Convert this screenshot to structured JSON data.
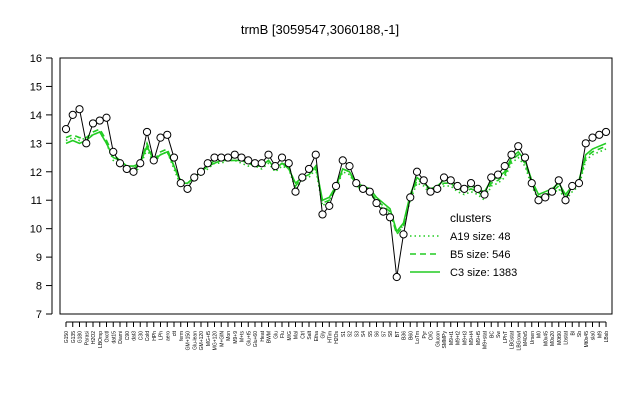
{
  "chart_data": {
    "type": "line",
    "title": "trmB [3059547,3060188,-1]",
    "xlabel": "",
    "ylabel": "",
    "ylim": [
      7,
      16
    ],
    "yticks": [
      7,
      8,
      9,
      10,
      11,
      12,
      13,
      14,
      15,
      16
    ],
    "grid": false,
    "legend_position": "right",
    "legend": {
      "title": "clusters",
      "entries": [
        {
          "label": "A19 size: 48",
          "color": "#22cc22",
          "style": "dotted"
        },
        {
          "label": "B5 size: 546",
          "color": "#22cc22",
          "style": "dashed"
        },
        {
          "label": "C3 size: 1383",
          "color": "#22cc22",
          "style": "solid"
        }
      ]
    },
    "x_labels": [
      "G150",
      "G135",
      "G180",
      "Parasi",
      "H2O2",
      "LBOmp",
      "Oxctl",
      "dat15",
      "Diami",
      "C90",
      "dat3",
      "C30",
      "Cold",
      "HPh",
      "LPh",
      "aero",
      "ctt",
      "ferm",
      "GM+150",
      "Glu-lean",
      "GM+120",
      "MG+t5",
      "MG+120",
      "M+GlN",
      "Mon",
      "M9+9",
      "M+ts",
      "Glu+t5",
      "Glu+60",
      "Heat",
      "BWM",
      "Glu",
      "Flu",
      "M/G",
      "Mal",
      "Ctrl",
      "Salt",
      "Etha",
      "Gly",
      "HTim",
      "H2Os",
      "S1",
      "S2",
      "S3",
      "S4",
      "S5",
      "S6",
      "S7",
      "S8",
      "BT",
      "B36",
      "B60",
      "LoTm",
      "Pyr",
      "O/G",
      "Glucon",
      "SMMPy",
      "M9+t1",
      "M9+t2",
      "M9+t3",
      "M9+t4",
      "M9+t5",
      "M9+stat",
      "BC",
      "Sw",
      "LPhT",
      "LBGstat",
      "LBGrowt",
      "M40x5",
      "Ursen",
      "M0",
      "M0x45",
      "M0x20",
      "M0t90",
      "Lbstat",
      "Bl",
      "Sb",
      "Mt0x45",
      "sla0",
      "M9",
      "LBsb"
    ],
    "series": [
      {
        "name": "expression",
        "style": "points-line",
        "x": [
          1,
          2,
          3,
          4,
          5,
          6,
          7,
          8,
          9,
          10,
          11,
          12,
          13,
          14,
          15,
          16,
          17,
          18,
          19,
          20,
          21,
          22,
          23,
          24,
          25,
          26,
          27,
          28,
          29,
          30,
          31,
          32,
          33,
          34,
          35,
          36,
          37,
          38,
          39,
          40,
          41,
          42,
          43,
          44,
          45,
          46,
          47,
          48,
          49,
          50,
          51,
          52,
          53,
          54,
          55,
          56,
          57,
          58,
          59,
          60,
          61,
          62,
          63,
          64,
          65,
          66,
          67,
          68,
          69,
          70,
          71,
          72,
          73,
          74,
          75,
          76,
          77,
          78,
          79,
          80,
          81
        ],
        "values": [
          13.5,
          14.0,
          14.2,
          13.0,
          13.7,
          13.8,
          13.9,
          12.7,
          12.3,
          12.1,
          12.0,
          12.3,
          13.4,
          12.4,
          13.2,
          13.3,
          12.5,
          11.6,
          11.4,
          11.8,
          12.0,
          12.3,
          12.5,
          12.5,
          12.5,
          12.6,
          12.5,
          12.4,
          12.3,
          12.3,
          12.6,
          12.2,
          12.5,
          12.3,
          11.3,
          11.8,
          12.1,
          12.6,
          10.5,
          10.8,
          11.5,
          12.4,
          12.2,
          11.6,
          11.4,
          11.3,
          10.9,
          10.6,
          10.4,
          8.3,
          9.8,
          11.1,
          12.0,
          11.7,
          11.3,
          11.4,
          11.8,
          11.7,
          11.5,
          11.4,
          11.6,
          11.4,
          11.2,
          11.8,
          11.9,
          12.2,
          12.6,
          12.9,
          12.5,
          11.6,
          11.0,
          11.1,
          11.3,
          11.7,
          11.0,
          11.5,
          11.6,
          13.0,
          13.2,
          13.3,
          13.4
        ]
      },
      {
        "name": "C3 size: 1383",
        "style": "solid",
        "x": [
          1,
          2,
          3,
          4,
          5,
          6,
          7,
          8,
          9,
          10,
          11,
          12,
          13,
          14,
          15,
          16,
          17,
          18,
          19,
          20,
          21,
          22,
          23,
          24,
          25,
          26,
          27,
          28,
          29,
          30,
          31,
          32,
          33,
          34,
          35,
          36,
          37,
          38,
          39,
          40,
          41,
          42,
          43,
          44,
          45,
          46,
          47,
          48,
          49,
          50,
          51,
          52,
          53,
          54,
          55,
          56,
          57,
          58,
          59,
          60,
          61,
          62,
          63,
          64,
          65,
          66,
          67,
          68,
          69,
          70,
          71,
          72,
          73,
          74,
          75,
          76,
          77,
          78,
          79,
          80,
          81
        ],
        "values": [
          13.0,
          13.1,
          13.0,
          13.1,
          13.3,
          13.4,
          13.0,
          12.5,
          12.4,
          12.2,
          12.2,
          12.3,
          12.9,
          12.4,
          12.6,
          12.7,
          12.2,
          11.6,
          11.6,
          11.8,
          12.0,
          12.2,
          12.3,
          12.4,
          12.4,
          12.4,
          12.4,
          12.3,
          12.2,
          12.2,
          12.4,
          12.1,
          12.3,
          12.1,
          11.6,
          11.8,
          11.9,
          12.2,
          11.0,
          11.1,
          11.5,
          12.1,
          12.0,
          11.6,
          11.5,
          11.4,
          11.1,
          10.9,
          10.7,
          9.9,
          10.2,
          11.2,
          11.8,
          11.6,
          11.4,
          11.5,
          11.7,
          11.7,
          11.5,
          11.4,
          11.5,
          11.4,
          11.3,
          11.7,
          11.8,
          12.0,
          12.5,
          12.7,
          12.4,
          11.7,
          11.2,
          11.3,
          11.4,
          11.6,
          11.2,
          11.5,
          11.7,
          12.6,
          12.8,
          12.9,
          13.0
        ]
      },
      {
        "name": "B5 size: 546",
        "style": "dashed",
        "x": [
          1,
          2,
          3,
          4,
          5,
          6,
          7,
          8,
          9,
          10,
          11,
          12,
          13,
          14,
          15,
          16,
          17,
          18,
          19,
          20,
          21,
          22,
          23,
          24,
          25,
          26,
          27,
          28,
          29,
          30,
          31,
          32,
          33,
          34,
          35,
          36,
          37,
          38,
          39,
          40,
          41,
          42,
          43,
          44,
          45,
          46,
          47,
          48,
          49,
          50,
          51,
          52,
          53,
          54,
          55,
          56,
          57,
          58,
          59,
          60,
          61,
          62,
          63,
          64,
          65,
          66,
          67,
          68,
          69,
          70,
          71,
          72,
          73,
          74,
          75,
          76,
          77,
          78,
          79,
          80,
          81
        ],
        "values": [
          13.2,
          13.3,
          13.2,
          13.2,
          13.4,
          13.5,
          13.1,
          12.6,
          12.4,
          12.2,
          12.1,
          12.3,
          13.0,
          12.4,
          12.7,
          12.8,
          12.2,
          11.7,
          11.6,
          11.8,
          12.0,
          12.2,
          12.4,
          12.4,
          12.5,
          12.5,
          12.4,
          12.3,
          12.3,
          12.2,
          12.4,
          12.1,
          12.3,
          12.2,
          11.5,
          11.8,
          11.9,
          12.2,
          10.9,
          11.0,
          11.4,
          12.1,
          12.0,
          11.5,
          11.4,
          11.3,
          11.0,
          10.8,
          10.6,
          9.8,
          10.1,
          11.1,
          11.7,
          11.6,
          11.3,
          11.4,
          11.6,
          11.6,
          11.4,
          11.3,
          11.4,
          11.3,
          11.1,
          11.6,
          11.7,
          11.9,
          12.4,
          12.6,
          12.3,
          11.6,
          11.1,
          11.2,
          11.3,
          11.5,
          11.1,
          11.4,
          11.6,
          12.5,
          12.7,
          12.8,
          12.9
        ]
      },
      {
        "name": "A19 size: 48",
        "style": "dotted",
        "x": [
          1,
          2,
          3,
          4,
          5,
          6,
          7,
          8,
          9,
          10,
          11,
          12,
          13,
          14,
          15,
          16,
          17,
          18,
          19,
          20,
          21,
          22,
          23,
          24,
          25,
          26,
          27,
          28,
          29,
          30,
          31,
          32,
          33,
          34,
          35,
          36,
          37,
          38,
          39,
          40,
          41,
          42,
          43,
          44,
          45,
          46,
          47,
          48,
          49,
          50,
          51,
          52,
          53,
          54,
          55,
          56,
          57,
          58,
          59,
          60,
          61,
          62,
          63,
          64,
          65,
          66,
          67,
          68,
          69,
          70,
          71,
          72,
          73,
          74,
          75,
          76,
          77,
          78,
          79,
          80,
          81
        ],
        "values": [
          13.1,
          13.2,
          13.1,
          13.2,
          13.3,
          13.4,
          13.0,
          12.4,
          12.2,
          12.0,
          11.9,
          12.2,
          12.8,
          12.3,
          12.6,
          12.7,
          12.1,
          11.5,
          11.5,
          11.7,
          11.9,
          12.1,
          12.3,
          12.3,
          12.4,
          12.4,
          12.3,
          12.2,
          12.2,
          12.1,
          12.3,
          12.0,
          12.2,
          12.1,
          11.4,
          11.7,
          11.8,
          12.1,
          10.8,
          11.0,
          11.4,
          12.0,
          11.9,
          11.5,
          11.3,
          11.3,
          10.9,
          10.7,
          10.5,
          9.9,
          10.1,
          11.0,
          11.6,
          11.5,
          11.2,
          11.3,
          11.5,
          11.5,
          11.3,
          11.2,
          11.3,
          11.2,
          11.0,
          11.5,
          11.6,
          11.8,
          12.3,
          12.5,
          12.2,
          11.5,
          11.0,
          11.1,
          11.2,
          11.4,
          11.0,
          11.3,
          11.5,
          12.4,
          12.6,
          12.7,
          12.8
        ]
      }
    ]
  },
  "colors": {
    "cluster_line": "#22cc22",
    "data_line": "#000000",
    "point_fill": "#ffffff",
    "point_stroke": "#000000"
  }
}
